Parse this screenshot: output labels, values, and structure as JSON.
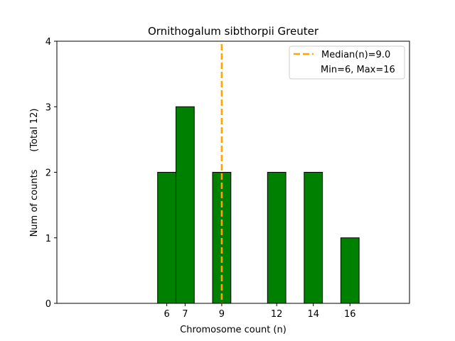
{
  "chart_data": {
    "type": "bar",
    "title": "Ornithogalum sibthorpii Greuter",
    "xlabel": "Chromosome count (n)",
    "ylabel": "Num of counts      (Total 12)",
    "x": [
      6,
      7,
      9,
      12,
      14,
      16
    ],
    "values": [
      2,
      3,
      2,
      2,
      2,
      1
    ],
    "xticks": [
      "6",
      "7",
      "9",
      "12",
      "14",
      "16"
    ],
    "yticks": [
      "0",
      "1",
      "2",
      "3",
      "4"
    ],
    "xlim": [
      0,
      19.25
    ],
    "ylim": [
      0,
      4
    ],
    "bar_color": "#008000",
    "bar_edge": "#000000",
    "median": 9.0,
    "median_color": "#FFA500",
    "legend": {
      "placement": "top-right",
      "entries": [
        "Median(n)=9.0",
        "Min=6, Max=16"
      ]
    }
  }
}
